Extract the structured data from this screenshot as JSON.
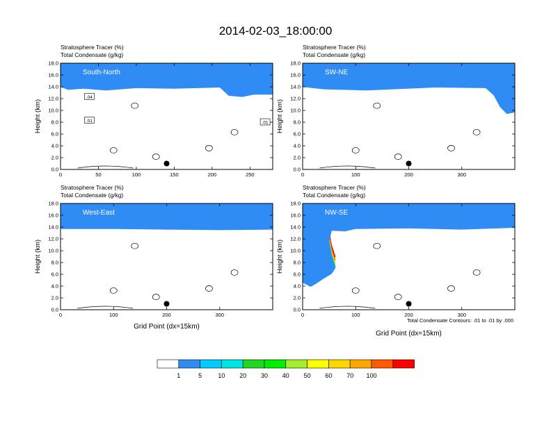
{
  "figure": {
    "title": "2014-02-03_18:00:00",
    "footnote": "Total Condensate Contours: .01 to .01 by .000"
  },
  "colorbar": {
    "colors": [
      "#ffffff",
      "#2f8cf4",
      "#00ccff",
      "#00e5e5",
      "#21d621",
      "#00ee00",
      "#a4ee2c",
      "#ffff00",
      "#ffd700",
      "#ffa500",
      "#ff5a00",
      "#ff0000"
    ],
    "labels": [
      "1",
      "5",
      "10",
      "20",
      "30",
      "40",
      "50",
      "60",
      "70",
      "100"
    ]
  },
  "chart_data": [
    {
      "type": "heatmap",
      "panel_label": "South-North",
      "field_1": "Stratosphere Tracer   (%)",
      "field_2": "Total Condensate   (g/kg)",
      "ylabel": "Height (km)",
      "xlabel": "",
      "ylim": [
        0,
        18
      ],
      "xlim": [
        0,
        280
      ],
      "yticks": [
        "0.0",
        "2.0",
        "4.0",
        "6.0",
        "8.0",
        "10.0",
        "12.0",
        "14.0",
        "16.0",
        "18.0"
      ],
      "xticks": [
        0,
        50,
        100,
        150,
        200,
        250
      ],
      "tracer_base_km": [
        [
          0,
          15.9
        ],
        [
          10,
          15.4
        ],
        [
          30,
          15.6
        ],
        [
          60,
          15.3
        ],
        [
          100,
          15.7
        ],
        [
          150,
          15.6
        ],
        [
          210,
          15.8
        ],
        [
          222,
          14.4
        ],
        [
          240,
          14.2
        ],
        [
          255,
          14.6
        ],
        [
          280,
          14.6
        ]
      ],
      "contour_labels": [
        {
          "text": ".04",
          "x": 38,
          "y": 12.3
        },
        {
          "text": ".01",
          "x": 38,
          "y": 8.3
        },
        {
          "text": ".01",
          "x": 270,
          "y": 8.0
        }
      ],
      "marker": {
        "x": 140,
        "y": 1.0
      }
    },
    {
      "type": "heatmap",
      "panel_label": "SW-NE",
      "field_1": "Stratosphere Tracer   (%)",
      "field_2": "Total Condensate   (g/kg)",
      "ylabel": "Height (km)",
      "xlabel": "",
      "ylim": [
        0,
        18
      ],
      "xlim": [
        0,
        400
      ],
      "yticks": [
        "0.0",
        "2.0",
        "4.0",
        "6.0",
        "8.0",
        "10.0",
        "12.0",
        "14.0",
        "16.0",
        "18.0"
      ],
      "xticks": [
        0,
        100,
        200,
        300
      ],
      "tracer_base_km": [
        [
          0,
          15.9
        ],
        [
          40,
          15.5
        ],
        [
          120,
          15.3
        ],
        [
          250,
          15.8
        ],
        [
          345,
          15.7
        ],
        [
          360,
          14.5
        ],
        [
          372,
          12.5
        ],
        [
          385,
          11.3
        ],
        [
          400,
          11.6
        ]
      ],
      "contour_labels": [],
      "marker": {
        "x": 200,
        "y": 1.0
      }
    },
    {
      "type": "heatmap",
      "panel_label": "West-East",
      "field_1": "Stratosphere Tracer   (%)",
      "field_2": "Total Condensate   (g/kg)",
      "ylabel": "Height (km)",
      "xlabel": "Grid Point (dx=15km)",
      "ylim": [
        0,
        18
      ],
      "xlim": [
        0,
        400
      ],
      "yticks": [
        "0.0",
        "2.0",
        "4.0",
        "6.0",
        "8.0",
        "10.0",
        "12.0",
        "14.0",
        "16.0",
        "18.0"
      ],
      "xticks": [
        0,
        100,
        200,
        300
      ],
      "tracer_base_km": [
        [
          0,
          15.6
        ],
        [
          100,
          15.6
        ],
        [
          200,
          15.5
        ],
        [
          300,
          15.4
        ],
        [
          400,
          15.5
        ]
      ],
      "contour_labels": [],
      "marker": {
        "x": 200,
        "y": 1.0
      }
    },
    {
      "type": "heatmap",
      "panel_label": "NW-SE",
      "field_1": "Stratosphere Tracer   (%)",
      "field_2": "Total Condensate   (g/kg)",
      "ylabel": "Height (km)",
      "xlabel": "Grid Point (dx=15km)",
      "ylim": [
        0,
        18
      ],
      "xlim": [
        0,
        400
      ],
      "yticks": [
        "0.0",
        "2.0",
        "4.0",
        "6.0",
        "8.0",
        "10.0",
        "12.0",
        "14.0",
        "16.0",
        "18.0"
      ],
      "xticks": [
        0,
        100,
        200,
        300
      ],
      "tracer_base_km": [
        [
          0,
          6.5
        ],
        [
          15,
          5.8
        ],
        [
          25,
          6.3
        ],
        [
          40,
          7.2
        ],
        [
          55,
          8.0
        ],
        [
          62,
          9.0
        ],
        [
          55,
          11.0
        ],
        [
          50,
          13.5
        ],
        [
          55,
          15.3
        ],
        [
          80,
          15.2
        ],
        [
          100,
          15.6
        ],
        [
          200,
          15.7
        ],
        [
          300,
          15.5
        ],
        [
          400,
          15.8
        ]
      ],
      "contour_labels": [],
      "marker": {
        "x": 200,
        "y": 1.0
      }
    }
  ]
}
